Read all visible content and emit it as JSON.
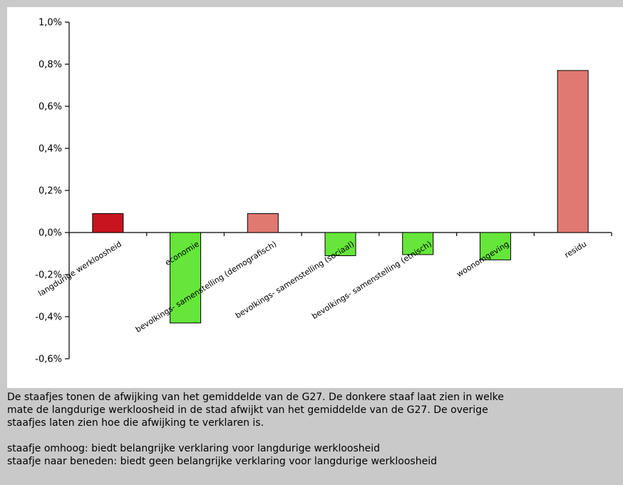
{
  "chart_data": {
    "type": "bar",
    "title": "",
    "xlabel": "",
    "ylabel": "",
    "ylim": [
      -0.6,
      1.0
    ],
    "y_ticks": [
      "1,0%",
      "0,8%",
      "0,6%",
      "0,4%",
      "0,2%",
      "0,0%",
      "-0,2%",
      "-0,4%",
      "-0,6%"
    ],
    "y_tick_values": [
      1.0,
      0.8,
      0.6,
      0.4,
      0.2,
      0.0,
      -0.2,
      -0.4,
      -0.6
    ],
    "grid": false,
    "categories": [
      "langdurige werkloosheid",
      "economie",
      "bevolkings- samenstelling (demografisch)",
      "bevolkings- samenstelling (sociaal)",
      "bevolkings- samenstelling (etnisch)",
      "woonomgeving",
      "residu"
    ],
    "values": [
      0.09,
      -0.43,
      0.09,
      -0.11,
      -0.105,
      -0.13,
      0.77
    ],
    "colors": {
      "dark_red": "#c8141e",
      "salmon": "#e07a70",
      "green": "#66e63a"
    }
  },
  "caption": {
    "paragraph1": "De staafjes tonen de afwijking van het gemiddelde van de G27. De donkere staaf laat zien in welke\nmate de langdurige werkloosheid in de stad afwijkt van het gemiddelde van de G27. De overige\nstaafjes laten zien hoe die afwijking te verklaren is.",
    "line_up": "staafje omhoog: biedt belangrijke verklaring voor langdurige werkloosheid",
    "line_down": "staafje naar beneden: biedt geen belangrijke verklaring voor langdurige werkloosheid"
  }
}
